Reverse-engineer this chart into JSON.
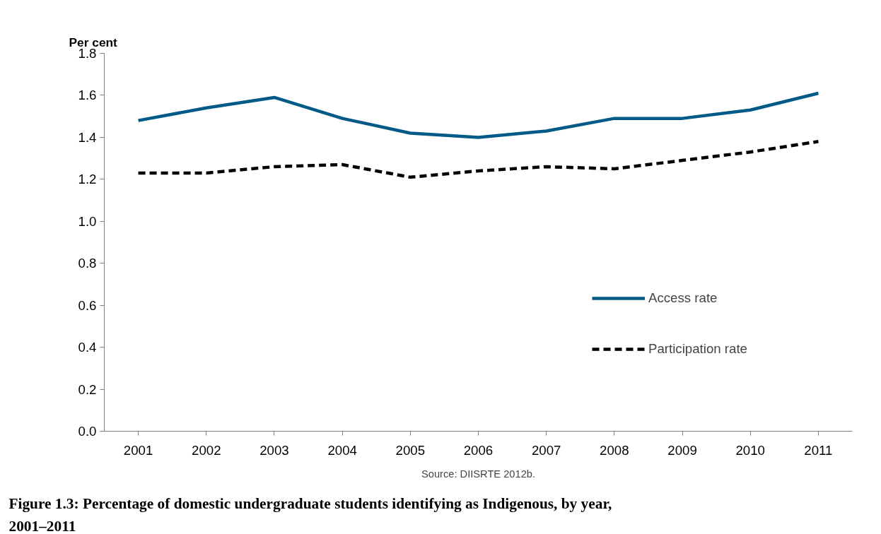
{
  "chart_data": {
    "type": "line",
    "title": "Figure 1.3: Percentage of domestic undergraduate students identifying as Indigenous, by year, 2001–2011",
    "ylabel": "Per cent",
    "annotations": [
      "Source: DIISRTE 2012b."
    ],
    "categories": [
      "2001",
      "2002",
      "2003",
      "2004",
      "2005",
      "2006",
      "2007",
      "2008",
      "2009",
      "2010",
      "2011"
    ],
    "series": [
      {
        "name": "Access rate",
        "color": "#005a87",
        "line_style": "solid",
        "values": [
          1.48,
          1.54,
          1.59,
          1.49,
          1.42,
          1.4,
          1.43,
          1.49,
          1.49,
          1.53,
          1.61
        ]
      },
      {
        "name": "Participation rate",
        "color": "#000000",
        "line_style": "dashed",
        "values": [
          1.23,
          1.23,
          1.26,
          1.27,
          1.21,
          1.24,
          1.26,
          1.25,
          1.29,
          1.33,
          1.38
        ]
      }
    ],
    "ylim": [
      0,
      1.8
    ],
    "yticks": [
      {
        "value": 0,
        "label": "0.0"
      },
      0.2,
      0.4,
      0.6,
      0.8,
      {
        "value": 1,
        "label": "1.0"
      },
      1.2,
      1.4,
      1.6,
      1.8
    ],
    "grid": false,
    "legend": "right"
  }
}
